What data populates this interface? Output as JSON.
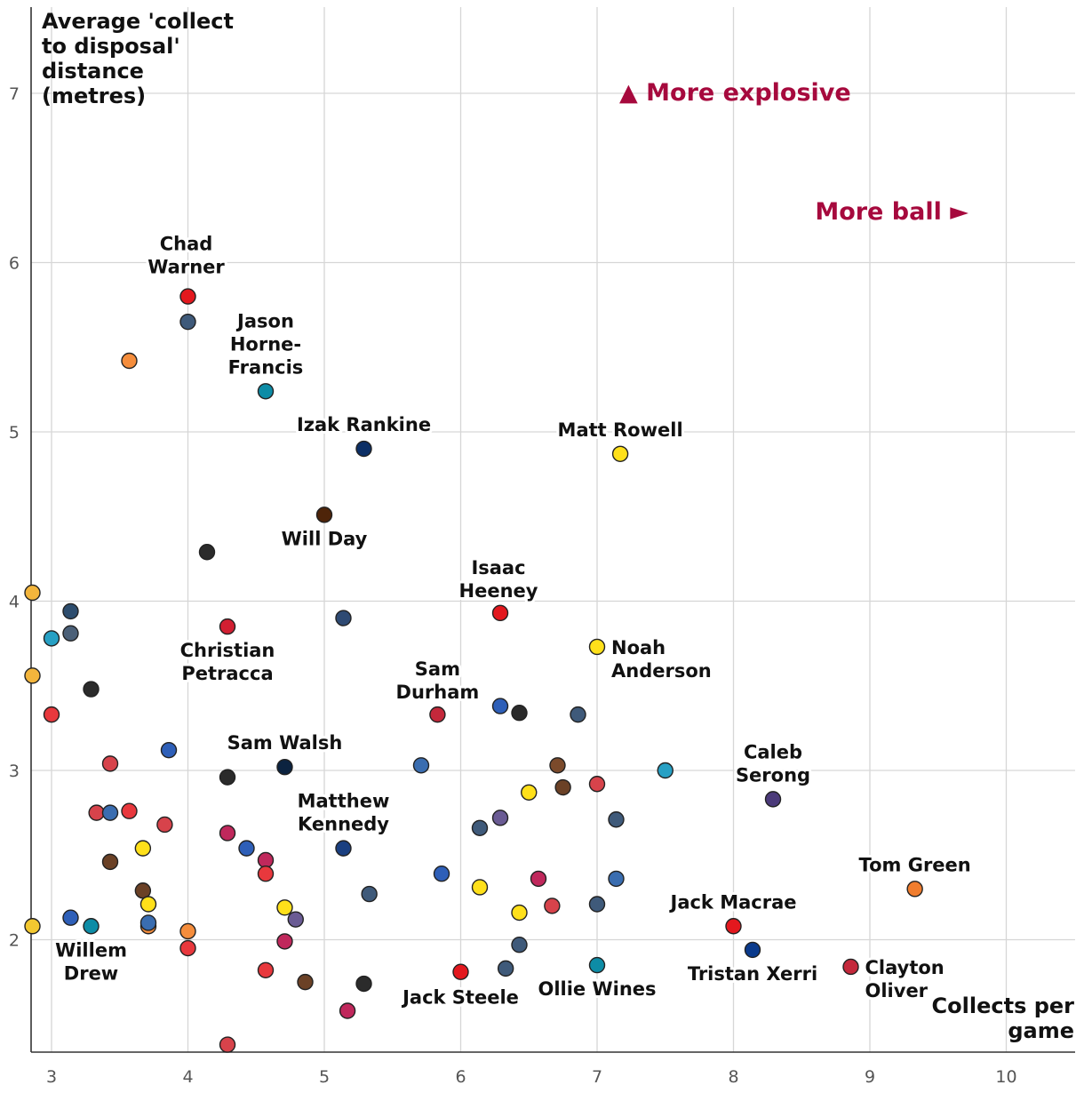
{
  "chart_data": {
    "type": "scatter",
    "title": "",
    "xlabel": "Collects per game",
    "ylabel": "Average 'collect to disposal' distance (metres)",
    "xlim": [
      2.85,
      10.5
    ],
    "ylim": [
      1.35,
      7.5
    ],
    "xticks": [
      3,
      4,
      5,
      6,
      7,
      8,
      9,
      10
    ],
    "yticks": [
      2,
      3,
      4,
      5,
      6,
      7
    ],
    "grid": true,
    "annotations": [
      {
        "text": "▲ More explosive",
        "color": "#a6093d"
      },
      {
        "text": "More ball ►",
        "color": "#a6093d"
      }
    ],
    "points": [
      {
        "x": 4.0,
        "y": 5.8,
        "color": "#e3181e",
        "label": "Chad Warner"
      },
      {
        "x": 4.0,
        "y": 5.65,
        "color": "#3f5a7a",
        "label": ""
      },
      {
        "x": 3.57,
        "y": 5.42,
        "color": "#f58d3c",
        "label": ""
      },
      {
        "x": 4.57,
        "y": 5.24,
        "color": "#0d8ca6",
        "label": "Jason Horne-Francis"
      },
      {
        "x": 5.29,
        "y": 4.9,
        "color": "#0c2f66",
        "label": "Izak Rankine"
      },
      {
        "x": 7.17,
        "y": 4.87,
        "color": "#ffe01a",
        "label": "Matt Rowell"
      },
      {
        "x": 5.0,
        "y": 4.51,
        "color": "#4e2409",
        "label": "Will Day"
      },
      {
        "x": 4.14,
        "y": 4.29,
        "color": "#2b2b2b",
        "label": ""
      },
      {
        "x": 2.86,
        "y": 4.05,
        "color": "#f3b53c",
        "label": ""
      },
      {
        "x": 3.14,
        "y": 3.94,
        "color": "#2d4d6e",
        "label": ""
      },
      {
        "x": 6.29,
        "y": 3.93,
        "color": "#e3181e",
        "label": "Isaac Heeney"
      },
      {
        "x": 5.14,
        "y": 3.9,
        "color": "#2e4a73",
        "label": ""
      },
      {
        "x": 4.29,
        "y": 3.85,
        "color": "#d21f32",
        "label": "Christian Petracca"
      },
      {
        "x": 3.14,
        "y": 3.81,
        "color": "#4b6078",
        "label": ""
      },
      {
        "x": 3.0,
        "y": 3.78,
        "color": "#27a0c4",
        "label": ""
      },
      {
        "x": 7.0,
        "y": 3.73,
        "color": "#ffe01a",
        "label": "Noah Anderson"
      },
      {
        "x": 2.86,
        "y": 3.56,
        "color": "#f3b53c",
        "label": ""
      },
      {
        "x": 3.29,
        "y": 3.48,
        "color": "#2b2b2b",
        "label": ""
      },
      {
        "x": 6.29,
        "y": 3.38,
        "color": "#2e5fb8",
        "label": ""
      },
      {
        "x": 6.43,
        "y": 3.34,
        "color": "#2b2b2b",
        "label": ""
      },
      {
        "x": 6.86,
        "y": 3.33,
        "color": "#3f5a7a",
        "label": ""
      },
      {
        "x": 3.0,
        "y": 3.33,
        "color": "#e8383d",
        "label": ""
      },
      {
        "x": 5.83,
        "y": 3.33,
        "color": "#c4283b",
        "label": "Sam Durham"
      },
      {
        "x": 3.86,
        "y": 3.12,
        "color": "#2e5fb8",
        "label": ""
      },
      {
        "x": 3.43,
        "y": 3.04,
        "color": "#d7434b",
        "label": ""
      },
      {
        "x": 6.71,
        "y": 3.03,
        "color": "#7b4a2b",
        "label": ""
      },
      {
        "x": 5.71,
        "y": 3.03,
        "color": "#3a6db0",
        "label": ""
      },
      {
        "x": 4.71,
        "y": 3.02,
        "color": "#0c2340",
        "label": "Sam Walsh"
      },
      {
        "x": 7.5,
        "y": 3.0,
        "color": "#27a0c4",
        "label": ""
      },
      {
        "x": 4.29,
        "y": 2.96,
        "color": "#2b2b2b",
        "label": ""
      },
      {
        "x": 7.0,
        "y": 2.92,
        "color": "#d7434b",
        "label": ""
      },
      {
        "x": 6.75,
        "y": 2.9,
        "color": "#6b4126",
        "label": ""
      },
      {
        "x": 6.5,
        "y": 2.87,
        "color": "#ffe01a",
        "label": ""
      },
      {
        "x": 8.29,
        "y": 2.83,
        "color": "#4b3a7a",
        "label": "Caleb Serong"
      },
      {
        "x": 3.57,
        "y": 2.76,
        "color": "#e8383d",
        "label": ""
      },
      {
        "x": 3.33,
        "y": 2.75,
        "color": "#d7434b",
        "label": ""
      },
      {
        "x": 3.43,
        "y": 2.75,
        "color": "#3a6db0",
        "label": ""
      },
      {
        "x": 6.29,
        "y": 2.72,
        "color": "#6a5b94",
        "label": ""
      },
      {
        "x": 7.14,
        "y": 2.71,
        "color": "#3f5a7a",
        "label": ""
      },
      {
        "x": 3.83,
        "y": 2.68,
        "color": "#d7434b",
        "label": ""
      },
      {
        "x": 6.14,
        "y": 2.66,
        "color": "#3f5a7a",
        "label": ""
      },
      {
        "x": 4.29,
        "y": 2.63,
        "color": "#c0285c",
        "label": ""
      },
      {
        "x": 5.14,
        "y": 2.54,
        "color": "#1a3f80",
        "label": "Matthew Kennedy"
      },
      {
        "x": 3.67,
        "y": 2.54,
        "color": "#ffe01a",
        "label": ""
      },
      {
        "x": 4.43,
        "y": 2.54,
        "color": "#2e5fb8",
        "label": ""
      },
      {
        "x": 4.57,
        "y": 2.47,
        "color": "#c0285c",
        "label": ""
      },
      {
        "x": 3.43,
        "y": 2.46,
        "color": "#6b4126",
        "label": ""
      },
      {
        "x": 4.57,
        "y": 2.39,
        "color": "#e8383d",
        "label": ""
      },
      {
        "x": 5.86,
        "y": 2.39,
        "color": "#2e5fb8",
        "label": ""
      },
      {
        "x": 6.57,
        "y": 2.36,
        "color": "#c0285c",
        "label": ""
      },
      {
        "x": 7.14,
        "y": 2.36,
        "color": "#3a6db0",
        "label": ""
      },
      {
        "x": 9.33,
        "y": 2.3,
        "color": "#f07d2e",
        "label": "Tom Green"
      },
      {
        "x": 6.14,
        "y": 2.31,
        "color": "#ffe01a",
        "label": ""
      },
      {
        "x": 3.67,
        "y": 2.29,
        "color": "#6b4126",
        "label": ""
      },
      {
        "x": 5.33,
        "y": 2.27,
        "color": "#3f5a7a",
        "label": ""
      },
      {
        "x": 3.71,
        "y": 2.21,
        "color": "#ffe01a",
        "label": ""
      },
      {
        "x": 7.0,
        "y": 2.21,
        "color": "#3f5a7a",
        "label": ""
      },
      {
        "x": 6.67,
        "y": 2.2,
        "color": "#d7434b",
        "label": ""
      },
      {
        "x": 4.71,
        "y": 2.19,
        "color": "#ffe01a",
        "label": ""
      },
      {
        "x": 6.43,
        "y": 2.16,
        "color": "#ffe01a",
        "label": ""
      },
      {
        "x": 3.14,
        "y": 2.13,
        "color": "#2e5fb8",
        "label": ""
      },
      {
        "x": 4.79,
        "y": 2.12,
        "color": "#6a5b94",
        "label": ""
      },
      {
        "x": 3.71,
        "y": 2.08,
        "color": "#f58d3c",
        "label": ""
      },
      {
        "x": 3.71,
        "y": 2.1,
        "color": "#3a6db0",
        "label": ""
      },
      {
        "x": 3.29,
        "y": 2.08,
        "color": "#0d8ca6",
        "label": "Willem Drew"
      },
      {
        "x": 8.0,
        "y": 2.08,
        "color": "#e3181e",
        "label": "Jack Macrae"
      },
      {
        "x": 2.86,
        "y": 2.08,
        "color": "#f3c830",
        "label": ""
      },
      {
        "x": 4.0,
        "y": 2.05,
        "color": "#f58d3c",
        "label": ""
      },
      {
        "x": 4.71,
        "y": 1.99,
        "color": "#c0285c",
        "label": ""
      },
      {
        "x": 6.43,
        "y": 1.97,
        "color": "#3f5a7a",
        "label": ""
      },
      {
        "x": 4.0,
        "y": 1.95,
        "color": "#e8383d",
        "label": ""
      },
      {
        "x": 8.14,
        "y": 1.94,
        "color": "#0a3a8c",
        "label": "Tristan Xerri"
      },
      {
        "x": 7.0,
        "y": 1.85,
        "color": "#0d8ca6",
        "label": "Ollie Wines"
      },
      {
        "x": 8.86,
        "y": 1.84,
        "color": "#c4283b",
        "label": "Clayton Oliver"
      },
      {
        "x": 6.33,
        "y": 1.83,
        "color": "#3f5a7a",
        "label": ""
      },
      {
        "x": 4.57,
        "y": 1.82,
        "color": "#e8383d",
        "label": ""
      },
      {
        "x": 6.0,
        "y": 1.81,
        "color": "#e3181e",
        "label": "Jack Steele"
      },
      {
        "x": 4.86,
        "y": 1.75,
        "color": "#6b4126",
        "label": ""
      },
      {
        "x": 5.29,
        "y": 1.74,
        "color": "#2b2b2b",
        "label": ""
      },
      {
        "x": 5.17,
        "y": 1.58,
        "color": "#c0285c",
        "label": ""
      },
      {
        "x": 4.29,
        "y": 1.38,
        "color": "#d7434b",
        "label": ""
      }
    ]
  }
}
